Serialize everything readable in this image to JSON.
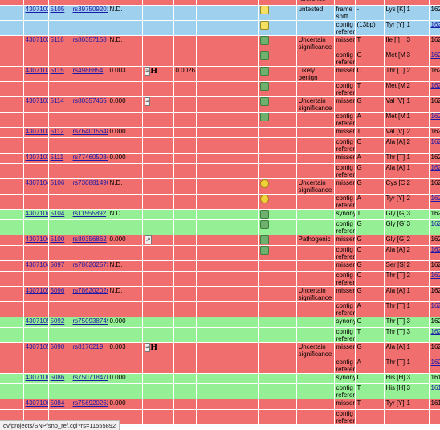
{
  "headers": {
    "partial": "reference"
  },
  "rows": [
    {
      "cls": "blue",
      "id": "43071029",
      "pos": "5105",
      "rs": "rs397509201",
      "val": "N.D.",
      "extra": "",
      "val2": "",
      "ico": "man",
      "sig": "untested",
      "func": "frame shift",
      "allele": "-",
      "aa": "Lys [K]",
      "frame": "1",
      "aapos": "1625",
      "aalink": false,
      "doc": false
    },
    {
      "cls": "blue",
      "ico": "man",
      "func": "contig reference",
      "allele": "(13bp)",
      "aa": "Tyr [Y]",
      "frame": "1",
      "aapos": "1625",
      "aalink": true
    },
    {
      "cls": "red",
      "id": "43071030",
      "pos": "5116",
      "rs": "rs80357158",
      "val": "N.D.",
      "ico": "grn",
      "sig": "Uncertain significance",
      "func": "missense",
      "allele": "T",
      "aa": "Ile [I]",
      "frame": "3",
      "aapos": "1628",
      "aalink": false
    },
    {
      "cls": "red",
      "ico": "grn",
      "func": "contig reference",
      "allele": "G",
      "aa": "Met [M]",
      "frame": "3",
      "aapos": "1628",
      "aalink": true
    },
    {
      "cls": "red",
      "id": "43071031",
      "pos": "5115",
      "rs": "rs4986854",
      "val": "0.003",
      "extra": "evi-h",
      "val2": "0.0026",
      "ico": "grn",
      "sig": "Likely benign",
      "func": "missense",
      "allele": "C",
      "aa": "Thr [T]",
      "frame": "2",
      "aapos": "1628",
      "aalink": false,
      "doc": true
    },
    {
      "cls": "red",
      "ico": "grn",
      "func": "contig reference",
      "allele": "T",
      "aa": "Met [M]",
      "frame": "2",
      "aapos": "1628",
      "aalink": true,
      "doc": true
    },
    {
      "cls": "red",
      "id": "43071032",
      "pos": "5114",
      "rs": "rs80357465",
      "val": "0.000",
      "extra": "evi",
      "ico": "grn",
      "sig": "Uncertain significance",
      "func": "missense",
      "allele": "G",
      "aa": "Val [V]",
      "frame": "1",
      "aapos": "1628",
      "aalink": false
    },
    {
      "cls": "red",
      "ico": "grn",
      "func": "contig reference",
      "allele": "A",
      "aa": "Met [M]",
      "frame": "1",
      "aapos": "1628",
      "aalink": true
    },
    {
      "cls": "red",
      "id": "43071034",
      "pos": "5112",
      "rs": "rs764015648",
      "val": "0.000",
      "func": "missense",
      "allele": "T",
      "aa": "Val [V]",
      "frame": "2",
      "aapos": "1627",
      "aalink": false
    },
    {
      "cls": "red",
      "func": "contig reference",
      "allele": "C",
      "aa": "Ala [A]",
      "frame": "2",
      "aapos": "1627",
      "aalink": true
    },
    {
      "cls": "red",
      "id": "43071036",
      "pos": "5111",
      "rs": "rs774605084",
      "val": "0.000",
      "func": "missense",
      "allele": "A",
      "aa": "Thr [T]",
      "frame": "1",
      "aapos": "1627",
      "aalink": false
    },
    {
      "cls": "red",
      "func": "contig reference",
      "allele": "G",
      "aa": "Ala [A]",
      "frame": "1",
      "aapos": "1627",
      "aalink": true
    },
    {
      "cls": "red",
      "id": "43071040",
      "pos": "5106",
      "rs": "rs730881498",
      "val": "N.D.",
      "ico": "ylw",
      "sig": "Uncertain significance",
      "func": "missense",
      "allele": "G",
      "aa": "Cys [C]",
      "frame": "2",
      "aapos": "1625",
      "aalink": false
    },
    {
      "cls": "red",
      "ico": "ylw",
      "func": "contig reference",
      "allele": "A",
      "aa": "Tyr [Y]",
      "frame": "2",
      "aapos": "1625",
      "aalink": true
    },
    {
      "cls": "green",
      "id": "43071042",
      "pos": "5104",
      "rs": "rs11555892",
      "val": "N.D.",
      "ico": "grn",
      "func": "synonymous",
      "allele": "T",
      "aa": "Gly [G]",
      "frame": "3",
      "aapos": "1624",
      "aalink": false
    },
    {
      "cls": "green",
      "ico": "grn",
      "func": "contig reference",
      "allele": "G",
      "aa": "Gly [G]",
      "frame": "3",
      "aapos": "1624",
      "aalink": true
    },
    {
      "cls": "red",
      "id": "43071046",
      "pos": "5100",
      "rs": "rs80356862",
      "val": "0.000",
      "extra": "evi-s",
      "ico": "grn",
      "sig": "Pathogenic",
      "func": "missense",
      "allele": "G",
      "aa": "Gly [G]",
      "frame": "2",
      "aapos": "1623",
      "aalink": false
    },
    {
      "cls": "red",
      "ico": "grn",
      "func": "contig reference",
      "allele": "C",
      "aa": "Ala [A]",
      "frame": "2",
      "aapos": "1623",
      "aalink": true
    },
    {
      "cls": "red",
      "id": "43071049",
      "pos": "5097",
      "rs": "rs786202573",
      "val": "N.D.",
      "func": "missense",
      "allele": "G",
      "aa": "Ser [S]",
      "frame": "2",
      "aapos": "1622",
      "aalink": false
    },
    {
      "cls": "red",
      "func": "contig reference",
      "allele": "C",
      "aa": "Thr [T]",
      "frame": "2",
      "aapos": "1622",
      "aalink": true
    },
    {
      "cls": "red",
      "id": "43071050",
      "pos": "5096",
      "rs": "rs786202026",
      "val": "N.D.",
      "sig": "Uncertain significance",
      "func": "missense",
      "allele": "G",
      "aa": "Ala [A]",
      "frame": "1",
      "aapos": "1622",
      "aalink": false
    },
    {
      "cls": "red",
      "func": "contig reference",
      "allele": "A",
      "aa": "Thr [T]",
      "frame": "1",
      "aapos": "1622",
      "aalink": true
    },
    {
      "cls": "green",
      "id": "43071054",
      "pos": "5092",
      "rs": "rs750938749",
      "val": "0.000",
      "func": "synonymous",
      "allele": "C",
      "aa": "Thr [T]",
      "frame": "3",
      "aapos": "1620",
      "aalink": false
    },
    {
      "cls": "green",
      "func": "contig reference",
      "allele": "T",
      "aa": "Thr [T]",
      "frame": "3",
      "aapos": "1620",
      "aalink": true
    },
    {
      "cls": "red",
      "id": "43071056",
      "pos": "5090",
      "rs": "rs8176219",
      "val": "0.003",
      "extra": "evi-h",
      "sig": "Uncertain significance",
      "func": "missense",
      "allele": "G",
      "aa": "Ala [A]",
      "frame": "1",
      "aapos": "1620",
      "aalink": false
    },
    {
      "cls": "red",
      "func": "contig reference",
      "allele": "A",
      "aa": "Thr [T]",
      "frame": "1",
      "aapos": "1620",
      "aalink": true
    },
    {
      "cls": "green",
      "id": "43071060",
      "pos": "5086",
      "rs": "rs750718476",
      "val": "0.000",
      "func": "synonymous",
      "allele": "C",
      "aa": "His [H]",
      "frame": "3",
      "aapos": "1618",
      "aalink": false
    },
    {
      "cls": "green",
      "func": "contig reference",
      "allele": "T",
      "aa": "His [H]",
      "frame": "3",
      "aapos": "1618",
      "aalink": true
    },
    {
      "cls": "red",
      "id": "43071062",
      "pos": "5084",
      "rs": "rs756920262",
      "val": "0.000",
      "func": "missense",
      "allele": "T",
      "aa": "Tyr [Y]",
      "frame": "1",
      "aapos": "1618",
      "aalink": false
    },
    {
      "cls": "red",
      "func": "contig reference",
      "allele": "",
      "aa": "",
      "frame": "",
      "aapos": "",
      "aalink": false
    }
  ],
  "status_url": "ov/projects/SNP/snp_ref.cgi?rs=11555892",
  "colors": {
    "red": "#f16e6e",
    "green": "#95f095",
    "blue": "#9fd0ee",
    "link": "#1a1aa8"
  }
}
